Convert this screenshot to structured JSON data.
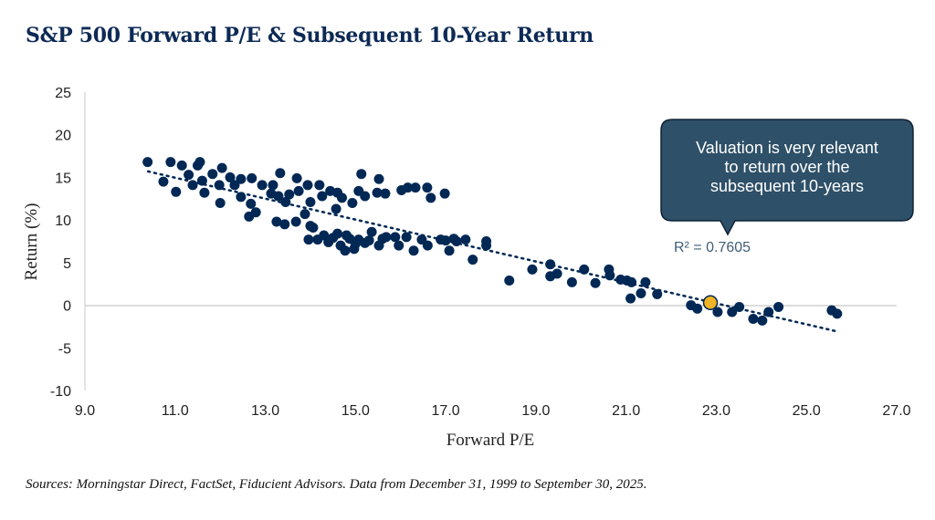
{
  "title": "S&P 500 Forward P/E & Subsequent 10-Year Return",
  "source": "Sources: Morningstar Direct, FactSet, Fiducient Advisors. Data from December 31, 1999 to September 30, 2025.",
  "colors": {
    "points": "#002855",
    "highlight": "#F0B323",
    "title": "#0d2a55",
    "callout_fill": "#2E5068",
    "callout_border": "#0f2236",
    "trendline": "#002855"
  },
  "callout": {
    "lines": [
      "Valuation is very relevant",
      "to return over the",
      "subsequent 10-years"
    ]
  },
  "chart_data": {
    "type": "scatter",
    "title": "S&P 500 Forward P/E & Subsequent 10-Year Return",
    "xlabel": "Forward P/E",
    "ylabel": "Return (%)",
    "xlim": [
      9.0,
      27.0
    ],
    "ylim": [
      -10,
      25
    ],
    "xticks": [
      "9.0",
      "11.0",
      "13.0",
      "15.0",
      "17.0",
      "19.0",
      "21.0",
      "23.0",
      "25.0",
      "27.0"
    ],
    "yticks": [
      "25",
      "20",
      "15",
      "10",
      "5",
      "0",
      "-5",
      "-10"
    ],
    "grid": false,
    "trendline": {
      "type": "linear",
      "x": [
        10.4,
        25.7
      ],
      "y": [
        15.7,
        -3.1
      ],
      "r_squared_label": "R² = 0.7605"
    },
    "highlight_point": {
      "x": 22.87,
      "y": 0.3
    },
    "points": [
      [
        10.39,
        16.8
      ],
      [
        10.74,
        14.5
      ],
      [
        10.9,
        16.8
      ],
      [
        11.02,
        13.3
      ],
      [
        11.15,
        16.4
      ],
      [
        11.3,
        15.3
      ],
      [
        11.39,
        14.1
      ],
      [
        11.5,
        16.4
      ],
      [
        11.55,
        16.8
      ],
      [
        11.6,
        14.6
      ],
      [
        11.65,
        13.2
      ],
      [
        11.83,
        15.4
      ],
      [
        11.98,
        14.1
      ],
      [
        12.0,
        12.0
      ],
      [
        12.04,
        16.1
      ],
      [
        12.22,
        15.0
      ],
      [
        12.32,
        14.1
      ],
      [
        12.46,
        14.8
      ],
      [
        12.46,
        12.7
      ],
      [
        12.64,
        10.4
      ],
      [
        12.68,
        11.9
      ],
      [
        12.7,
        14.9
      ],
      [
        12.79,
        10.9
      ],
      [
        12.93,
        14.1
      ],
      [
        13.13,
        13.1
      ],
      [
        13.17,
        14.1
      ],
      [
        13.25,
        9.8
      ],
      [
        13.29,
        12.8
      ],
      [
        13.33,
        15.5
      ],
      [
        13.43,
        9.5
      ],
      [
        13.45,
        12.1
      ],
      [
        13.53,
        13.0
      ],
      [
        13.68,
        9.8
      ],
      [
        13.7,
        14.9
      ],
      [
        13.74,
        13.4
      ],
      [
        13.88,
        10.7
      ],
      [
        13.94,
        14.1
      ],
      [
        13.96,
        7.7
      ],
      [
        14.0,
        12.1
      ],
      [
        14.0,
        9.3
      ],
      [
        14.06,
        9.1
      ],
      [
        14.16,
        7.7
      ],
      [
        14.2,
        14.1
      ],
      [
        14.26,
        12.8
      ],
      [
        14.3,
        8.2
      ],
      [
        14.4,
        7.4
      ],
      [
        14.44,
        13.4
      ],
      [
        14.5,
        7.9
      ],
      [
        14.57,
        11.3
      ],
      [
        14.6,
        8.4
      ],
      [
        14.6,
        13.2
      ],
      [
        14.67,
        7.0
      ],
      [
        14.7,
        12.6
      ],
      [
        14.77,
        6.4
      ],
      [
        14.8,
        8.2
      ],
      [
        14.87,
        7.8
      ],
      [
        14.93,
        12.0
      ],
      [
        14.97,
        6.6
      ],
      [
        15.0,
        7.2
      ],
      [
        15.07,
        7.7
      ],
      [
        15.07,
        13.4
      ],
      [
        15.13,
        15.4
      ],
      [
        15.21,
        7.3
      ],
      [
        15.21,
        12.8
      ],
      [
        15.3,
        7.6
      ],
      [
        15.36,
        8.6
      ],
      [
        15.48,
        13.2
      ],
      [
        15.52,
        7.0
      ],
      [
        15.52,
        14.8
      ],
      [
        15.6,
        7.8
      ],
      [
        15.66,
        13.1
      ],
      [
        15.68,
        8.0
      ],
      [
        15.88,
        8.0
      ],
      [
        15.96,
        7.0
      ],
      [
        16.02,
        13.5
      ],
      [
        16.13,
        8.0
      ],
      [
        16.16,
        13.8
      ],
      [
        16.29,
        6.4
      ],
      [
        16.33,
        13.8
      ],
      [
        16.47,
        7.7
      ],
      [
        16.59,
        13.8
      ],
      [
        16.6,
        7.0
      ],
      [
        16.67,
        12.6
      ],
      [
        16.89,
        7.7
      ],
      [
        16.98,
        13.1
      ],
      [
        17.0,
        7.6
      ],
      [
        17.08,
        6.4
      ],
      [
        17.18,
        7.8
      ],
      [
        17.24,
        7.5
      ],
      [
        17.44,
        7.7
      ],
      [
        17.6,
        5.35
      ],
      [
        17.9,
        7.5
      ],
      [
        17.9,
        7.0
      ],
      [
        18.41,
        2.9
      ],
      [
        18.92,
        4.2
      ],
      [
        19.32,
        4.8
      ],
      [
        19.32,
        3.4
      ],
      [
        19.47,
        3.7
      ],
      [
        19.8,
        2.7
      ],
      [
        20.07,
        4.2
      ],
      [
        20.32,
        2.6
      ],
      [
        20.62,
        4.2
      ],
      [
        20.64,
        3.5
      ],
      [
        20.88,
        3.0
      ],
      [
        21.02,
        2.9
      ],
      [
        21.1,
        0.8
      ],
      [
        21.12,
        2.7
      ],
      [
        21.33,
        1.4
      ],
      [
        21.43,
        2.7
      ],
      [
        21.69,
        1.3
      ],
      [
        22.44,
        0.0
      ],
      [
        22.58,
        -0.4
      ],
      [
        23.03,
        -0.8
      ],
      [
        23.35,
        -0.8
      ],
      [
        23.51,
        -0.2
      ],
      [
        23.82,
        -1.6
      ],
      [
        24.02,
        -1.8
      ],
      [
        24.16,
        -0.8
      ],
      [
        24.38,
        -0.2
      ],
      [
        25.56,
        -0.6
      ],
      [
        25.68,
        -1.0
      ]
    ]
  }
}
